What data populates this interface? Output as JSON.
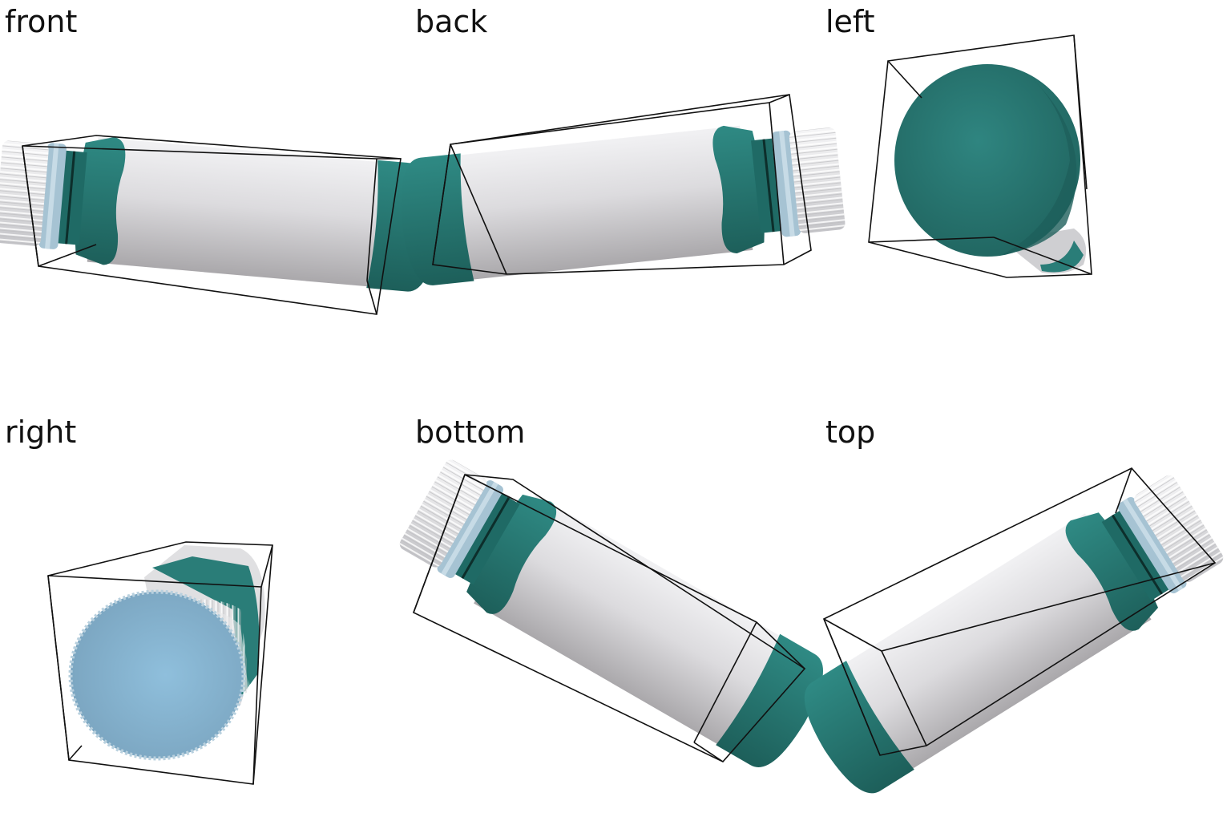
{
  "views": [
    {
      "id": "front",
      "label": "front"
    },
    {
      "id": "back",
      "label": "back"
    },
    {
      "id": "left",
      "label": "left"
    },
    {
      "id": "right",
      "label": "right"
    },
    {
      "id": "bottom",
      "label": "bottom"
    },
    {
      "id": "top",
      "label": "top"
    }
  ],
  "colors": {
    "teal": "#2a7d78",
    "teal_dark": "#1f6560",
    "label_white": "#e8e8ea",
    "label_grey": "#b5b3b6",
    "cap_white": "#ececee",
    "cap_grey": "#c9c9cc",
    "cap_blue": "#8fb7cf",
    "box_line": "#111111"
  }
}
